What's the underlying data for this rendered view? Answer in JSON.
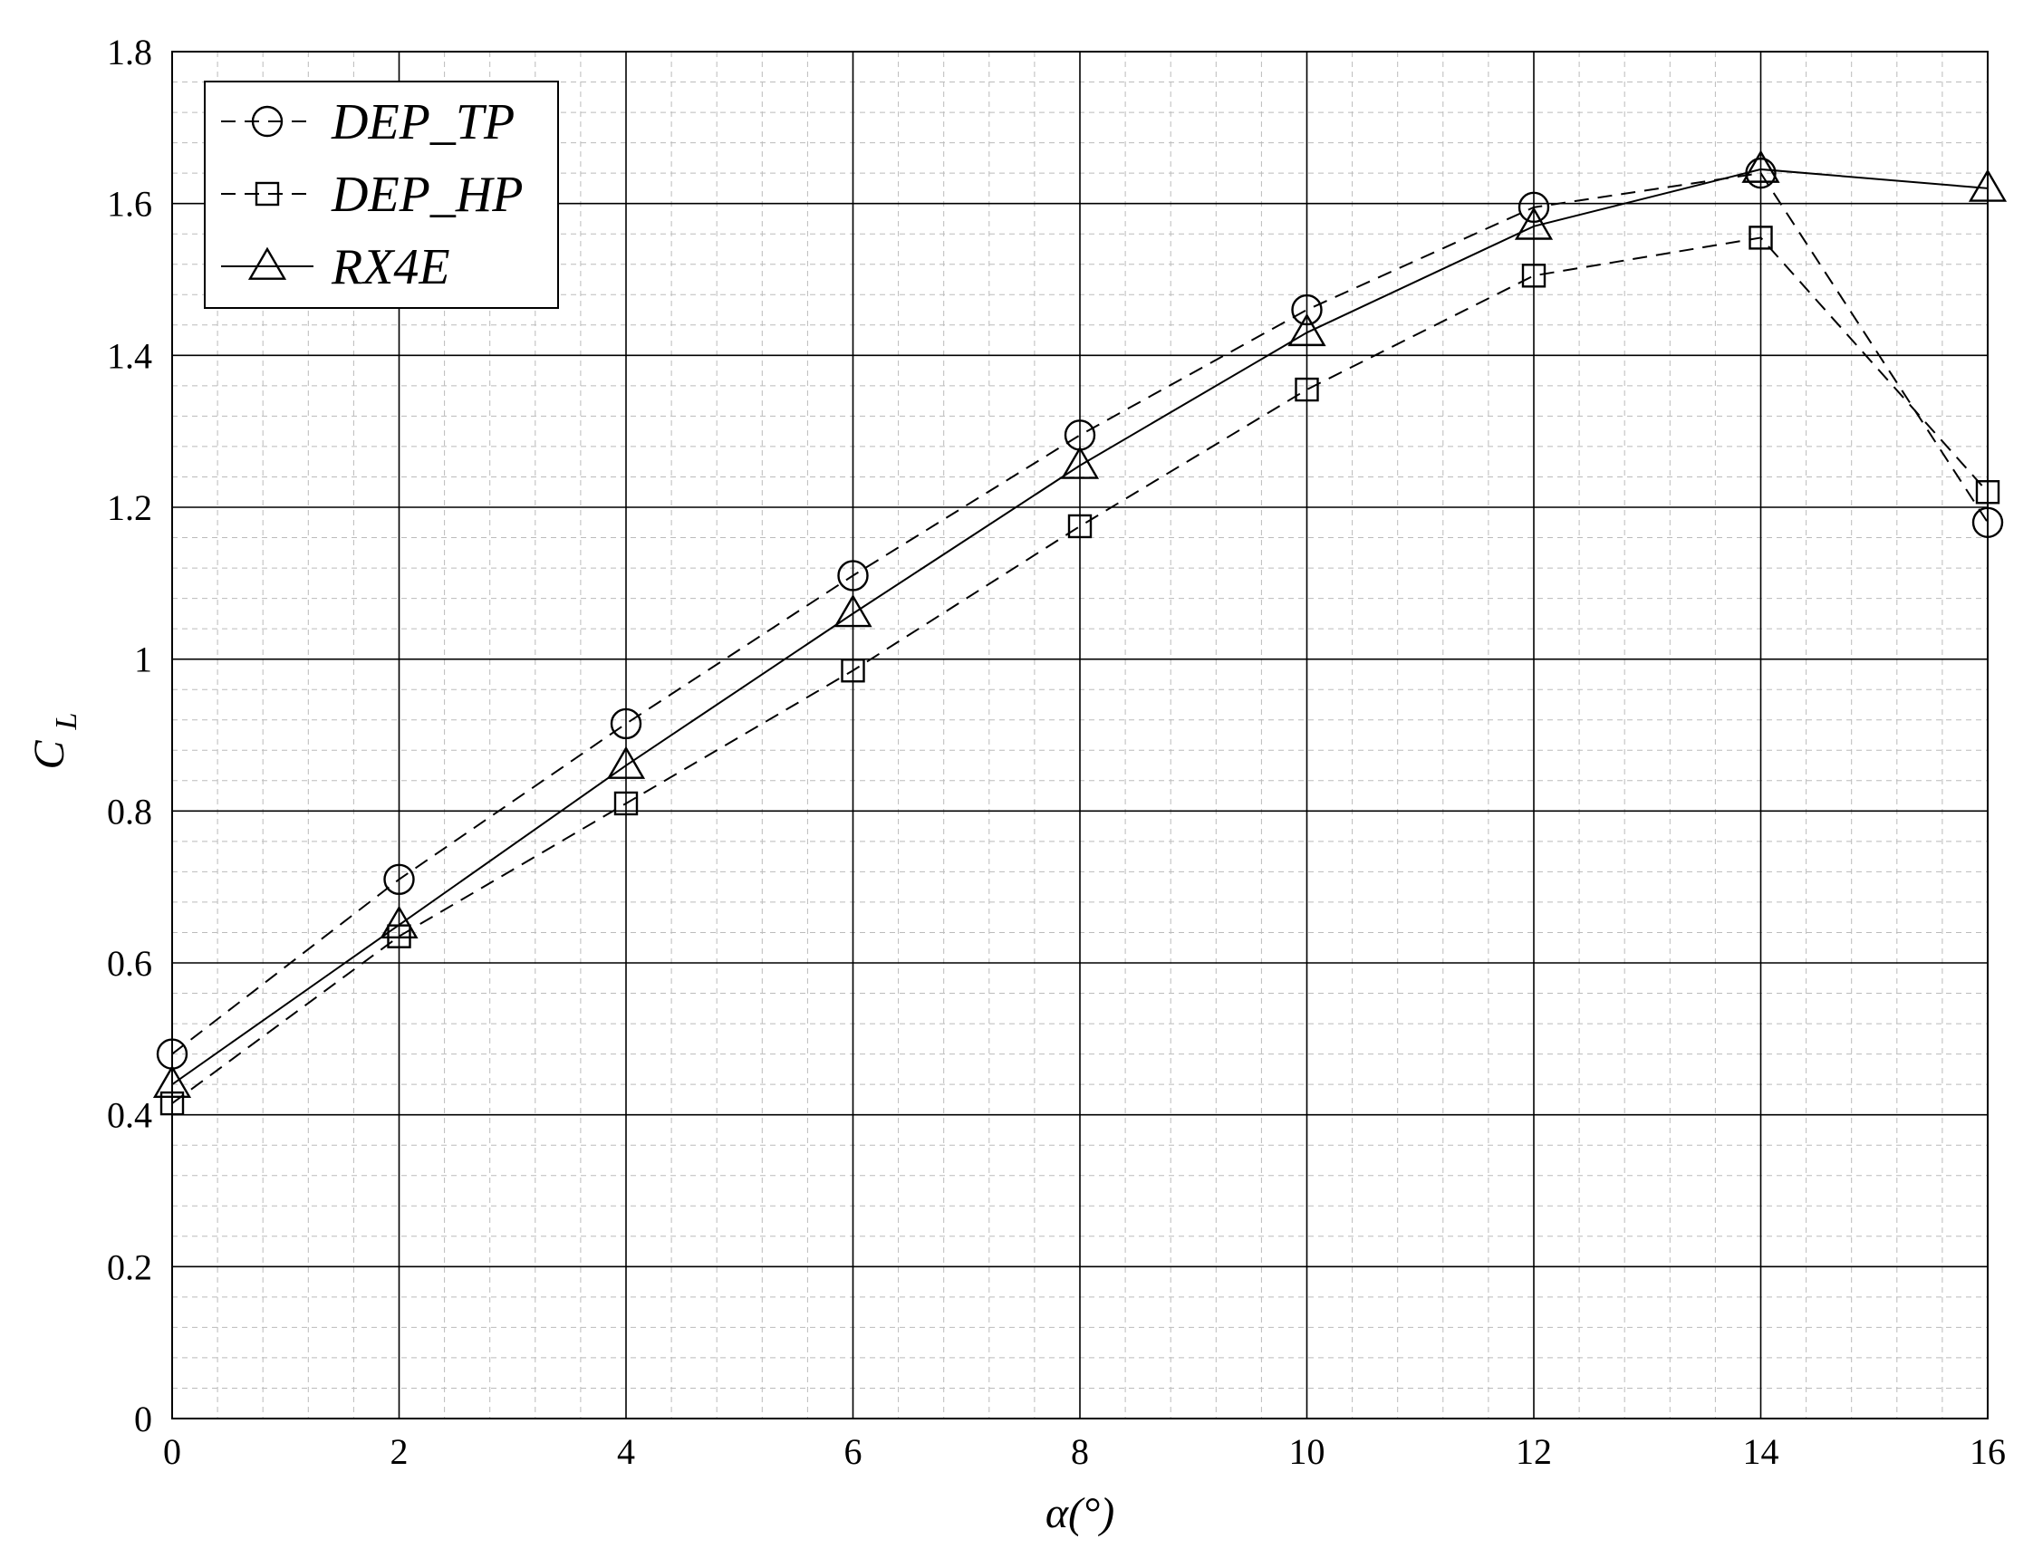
{
  "chart_data": {
    "type": "line",
    "title": "",
    "xlabel": "α(°)",
    "ylabel": {
      "main": "C",
      "sub": "L"
    },
    "xlim": [
      0,
      16
    ],
    "ylim": [
      0,
      1.8
    ],
    "x_ticks": [
      0,
      2,
      4,
      6,
      8,
      10,
      12,
      14,
      16
    ],
    "y_ticks": [
      0,
      0.2,
      0.4,
      0.6,
      0.8,
      1,
      1.2,
      1.4,
      1.6,
      1.8
    ],
    "y_tick_labels": [
      "0",
      "0.2",
      "0.4",
      "0.6",
      "0.8",
      "1",
      "1.2",
      "1.4",
      "1.6",
      "1.8"
    ],
    "grid": {
      "major": true,
      "minor": true,
      "minor_style": "dashed"
    },
    "legend_position": "top-left",
    "colors": {
      "line": "#000000",
      "major_grid": "#000000",
      "minor_grid": "#bbbbbb",
      "background": "#ffffff"
    },
    "x": [
      0,
      2,
      4,
      6,
      8,
      10,
      12,
      14,
      16
    ],
    "series": [
      {
        "name": "DEP_TP",
        "marker": "circle",
        "line_style": "dashed",
        "values": [
          0.48,
          0.71,
          0.915,
          1.11,
          1.295,
          1.46,
          1.595,
          1.64,
          1.18
        ]
      },
      {
        "name": "DEP_HP",
        "marker": "square",
        "line_style": "dashed",
        "values": [
          0.415,
          0.635,
          0.81,
          0.985,
          1.175,
          1.355,
          1.505,
          1.555,
          1.22
        ]
      },
      {
        "name": "RX4E",
        "marker": "triangle",
        "line_style": "solid",
        "values": [
          0.44,
          0.65,
          0.86,
          1.06,
          1.255,
          1.43,
          1.57,
          1.645,
          1.62
        ]
      }
    ]
  }
}
